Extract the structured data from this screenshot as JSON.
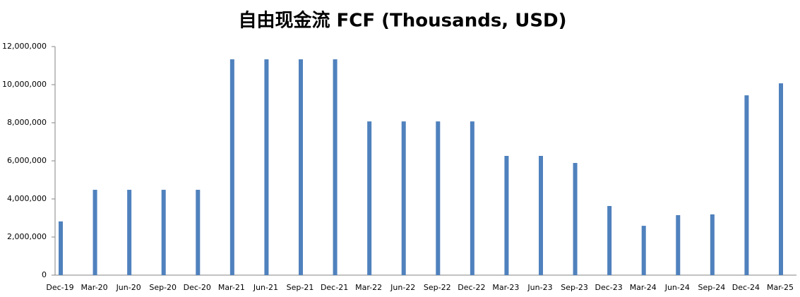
{
  "chart_data": {
    "type": "bar",
    "title": "自由现金流 FCF (Thousands, USD)",
    "categories": [
      "Dec-19",
      "Mar-20",
      "Jun-20",
      "Sep-20",
      "Dec-20",
      "Mar-21",
      "Jun-21",
      "Sep-21",
      "Dec-21",
      "Mar-22",
      "Jun-22",
      "Sep-22",
      "Dec-22",
      "Mar-23",
      "Jun-23",
      "Sep-23",
      "Dec-23",
      "Mar-24",
      "Jun-24",
      "Sep-24",
      "Dec-24",
      "Mar-25"
    ],
    "values": [
      2820000,
      4480000,
      4480000,
      4480000,
      4480000,
      11330000,
      11330000,
      11330000,
      11330000,
      8070000,
      8070000,
      8070000,
      8070000,
      6260000,
      6260000,
      5890000,
      3630000,
      2590000,
      3150000,
      3190000,
      9440000,
      10070000
    ],
    "color": "#4f81bd",
    "ylim": [
      0,
      12000000
    ],
    "yticks": [
      0,
      {
        "value": 2000000,
        "label": "2,000,000"
      },
      {
        "value": 4000000,
        "label": "4,000,000"
      },
      {
        "value": 6000000,
        "label": "6,000,000"
      },
      {
        "value": 8000000,
        "label": "8,000,000"
      },
      {
        "value": 10000000,
        "label": "10,000,000"
      },
      {
        "value": 12000000,
        "label": "12,000,000"
      }
    ],
    "grid": false
  }
}
